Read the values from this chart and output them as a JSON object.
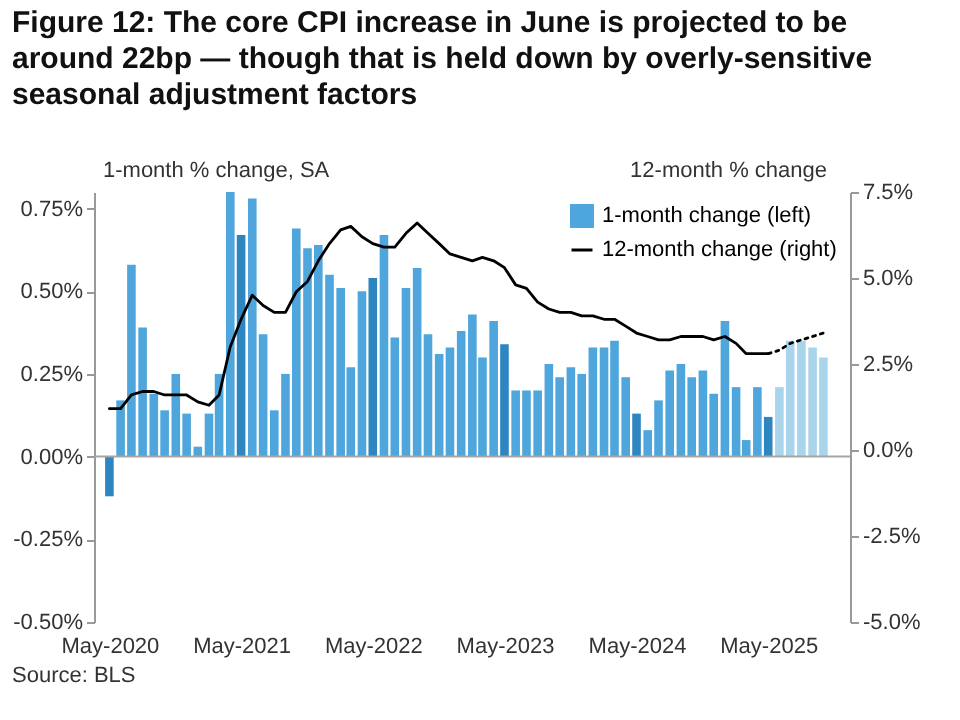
{
  "chart_data": {
    "type": "bar",
    "title": "Figure 12: The core CPI increase in June is projected to be around 22bp — though that is held down by overly-sensitive seasonal adjustment factors",
    "ylabel": "1-month % change, SA",
    "y2label": "12-month % change",
    "annotations": [
      "Source: BLS"
    ],
    "x": [
      "2020-05",
      "2020-06",
      "2020-07",
      "2020-08",
      "2020-09",
      "2020-10",
      "2020-11",
      "2020-12",
      "2021-01",
      "2021-02",
      "2021-03",
      "2021-04",
      "2021-05",
      "2021-06",
      "2021-07",
      "2021-08",
      "2021-09",
      "2021-10",
      "2021-11",
      "2021-12",
      "2022-01",
      "2022-02",
      "2022-03",
      "2022-04",
      "2022-05",
      "2022-06",
      "2022-07",
      "2022-08",
      "2022-09",
      "2022-10",
      "2022-11",
      "2022-12",
      "2023-01",
      "2023-02",
      "2023-03",
      "2023-04",
      "2023-05",
      "2023-06",
      "2023-07",
      "2023-08",
      "2023-09",
      "2023-10",
      "2023-11",
      "2023-12",
      "2024-01",
      "2024-02",
      "2024-03",
      "2024-04",
      "2024-05",
      "2024-06",
      "2024-07",
      "2024-08",
      "2024-09",
      "2024-10",
      "2024-11",
      "2024-12",
      "2025-01",
      "2025-02",
      "2025-03",
      "2025-04",
      "2025-05",
      "2025-06",
      "2025-07",
      "2025-08",
      "2025-09",
      "2025-10"
    ],
    "series": [
      {
        "name": "1-month change (left)",
        "color": "#4ea6dc",
        "values": [
          -0.12,
          0.17,
          0.58,
          0.39,
          0.19,
          0.14,
          0.25,
          0.13,
          0.03,
          0.13,
          0.25,
          0.8,
          0.67,
          0.78,
          0.37,
          0.14,
          0.25,
          0.69,
          0.63,
          0.64,
          0.55,
          0.51,
          0.27,
          0.5,
          0.54,
          0.67,
          0.36,
          0.51,
          0.57,
          0.37,
          0.31,
          0.33,
          0.38,
          0.43,
          0.3,
          0.41,
          0.34,
          0.2,
          0.2,
          0.2,
          0.28,
          0.24,
          0.27,
          0.25,
          0.33,
          0.33,
          0.35,
          0.24,
          0.13,
          0.08,
          0.17,
          0.26,
          0.28,
          0.24,
          0.26,
          0.19,
          0.41,
          0.21,
          0.05,
          0.21,
          0.12,
          0.21,
          0.35,
          0.35,
          0.33,
          0.3
        ],
        "colors": [
          "#2e86c1",
          "#4ea6dc",
          "#4ea6dc",
          "#4ea6dc",
          "#4ea6dc",
          "#4ea6dc",
          "#4ea6dc",
          "#4ea6dc",
          "#4ea6dc",
          "#4ea6dc",
          "#4ea6dc",
          "#4ea6dc",
          "#2e86c1",
          "#4ea6dc",
          "#4ea6dc",
          "#4ea6dc",
          "#4ea6dc",
          "#4ea6dc",
          "#4ea6dc",
          "#4ea6dc",
          "#4ea6dc",
          "#4ea6dc",
          "#4ea6dc",
          "#4ea6dc",
          "#2e86c1",
          "#4ea6dc",
          "#4ea6dc",
          "#4ea6dc",
          "#4ea6dc",
          "#4ea6dc",
          "#4ea6dc",
          "#4ea6dc",
          "#4ea6dc",
          "#4ea6dc",
          "#4ea6dc",
          "#4ea6dc",
          "#2e86c1",
          "#4ea6dc",
          "#4ea6dc",
          "#4ea6dc",
          "#4ea6dc",
          "#4ea6dc",
          "#4ea6dc",
          "#4ea6dc",
          "#4ea6dc",
          "#4ea6dc",
          "#4ea6dc",
          "#4ea6dc",
          "#2e86c1",
          "#4ea6dc",
          "#4ea6dc",
          "#4ea6dc",
          "#4ea6dc",
          "#4ea6dc",
          "#4ea6dc",
          "#4ea6dc",
          "#4ea6dc",
          "#4ea6dc",
          "#4ea6dc",
          "#4ea6dc",
          "#2e86c1",
          "#a9d5ec",
          "#a9d5ec",
          "#a9d5ec",
          "#a9d5ec",
          "#a9d5ec"
        ]
      },
      {
        "name": "12-month change (right)",
        "type": "line",
        "axis": "y2",
        "color": "#000000",
        "x": [
          "2020-05",
          "2020-06",
          "2020-07",
          "2020-08",
          "2020-09",
          "2020-10",
          "2020-11",
          "2020-12",
          "2021-01",
          "2021-02",
          "2021-03",
          "2021-04",
          "2021-05",
          "2021-06",
          "2021-07",
          "2021-08",
          "2021-09",
          "2021-10",
          "2021-11",
          "2021-12",
          "2022-01",
          "2022-02",
          "2022-03",
          "2022-04",
          "2022-05",
          "2022-06",
          "2022-07",
          "2022-08",
          "2022-09",
          "2022-10",
          "2022-11",
          "2022-12",
          "2023-01",
          "2023-02",
          "2023-03",
          "2023-04",
          "2023-05",
          "2023-06",
          "2023-07",
          "2023-08",
          "2023-09",
          "2023-10",
          "2023-11",
          "2023-12",
          "2024-01",
          "2024-02",
          "2024-03",
          "2024-04",
          "2024-05",
          "2024-06",
          "2024-07",
          "2024-08",
          "2024-09",
          "2024-10",
          "2024-11",
          "2024-12",
          "2025-01",
          "2025-02",
          "2025-03",
          "2025-04",
          "2025-05"
        ],
        "values": [
          1.2,
          1.2,
          1.6,
          1.7,
          1.7,
          1.6,
          1.6,
          1.6,
          1.4,
          1.3,
          1.6,
          3.0,
          3.8,
          4.5,
          4.2,
          4.0,
          4.0,
          4.6,
          4.9,
          5.5,
          6.0,
          6.4,
          6.5,
          6.2,
          6.0,
          5.9,
          5.9,
          6.3,
          6.6,
          6.3,
          6.0,
          5.7,
          5.6,
          5.5,
          5.6,
          5.5,
          5.3,
          4.8,
          4.7,
          4.3,
          4.1,
          4.0,
          4.0,
          3.9,
          3.9,
          3.8,
          3.8,
          3.6,
          3.4,
          3.3,
          3.2,
          3.2,
          3.3,
          3.3,
          3.3,
          3.2,
          3.3,
          3.1,
          2.8,
          2.8,
          2.8
        ]
      },
      {
        "type": "line",
        "axis": "y2",
        "color": "#000000",
        "line_style": "dotted",
        "x": [
          "2025-05",
          "2025-06",
          "2025-07",
          "2025-08",
          "2025-09",
          "2025-10"
        ],
        "values": [
          2.8,
          2.9,
          3.1,
          3.2,
          3.3,
          3.4
        ]
      }
    ],
    "xlim": [
      "2020-04-16",
      "2025-11-16"
    ],
    "xticks": [
      {
        "value": "2020-05",
        "label": "May-2020"
      },
      {
        "value": "2021-05",
        "label": "May-2021"
      },
      {
        "value": "2022-05",
        "label": "May-2022"
      },
      {
        "value": "2023-05",
        "label": "May-2023"
      },
      {
        "value": "2024-05",
        "label": "May-2024"
      },
      {
        "value": "2025-05",
        "label": "May-2025"
      }
    ],
    "ylim": [
      -0.5,
      0.8
    ],
    "yticks": [
      {
        "value": -0.5,
        "label": "-0.50%"
      },
      {
        "value": -0.25,
        "label": "-0.25%"
      },
      {
        "value": 0,
        "label": "0.00%"
      },
      {
        "value": 0.25,
        "label": "0.25%"
      },
      {
        "value": 0.5,
        "label": "0.50%"
      },
      {
        "value": 0.75,
        "label": "0.75%"
      }
    ],
    "y2lim": [
      -5,
      7.5
    ],
    "y2ticks": [
      {
        "value": -5,
        "label": "-5.0%"
      },
      {
        "value": -2.5,
        "label": "-2.5%"
      },
      {
        "value": 0,
        "label": "0.0%"
      },
      {
        "value": 2.5,
        "label": "2.5%"
      },
      {
        "value": 5,
        "label": "5.0%"
      },
      {
        "value": 7.5,
        "label": "7.5%"
      }
    ],
    "ref_lines": [
      {
        "axis": "y",
        "value": 0,
        "color": "#a6a6a6"
      }
    ],
    "legend": "top right"
  }
}
